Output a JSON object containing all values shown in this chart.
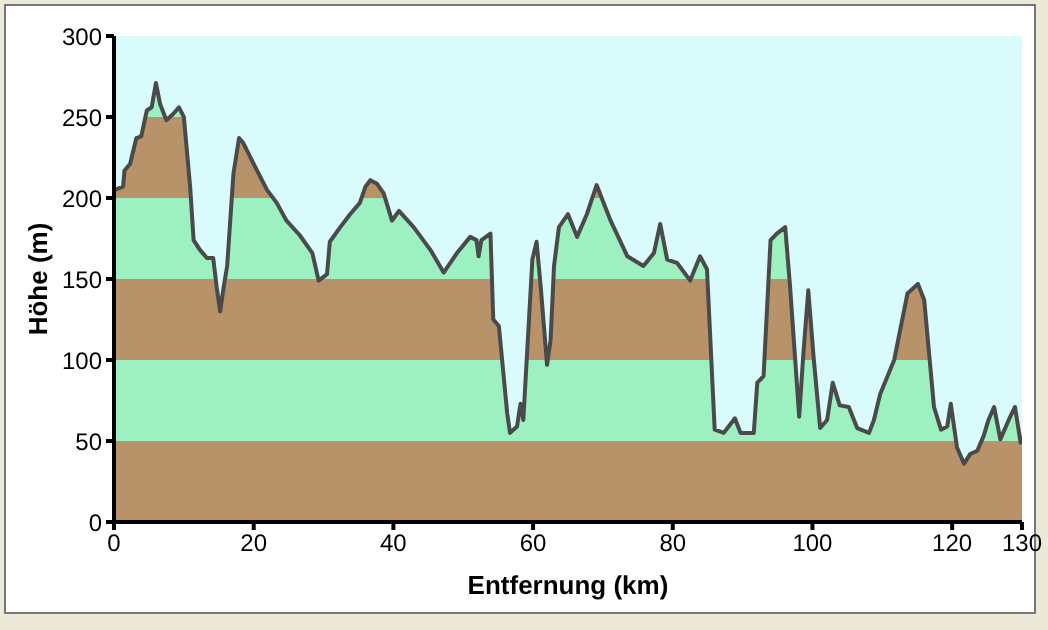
{
  "chart_data": {
    "type": "area",
    "xlabel": "Entfernung   (km)",
    "ylabel": "Höhe (m)",
    "color": "#4a4a4a",
    "x": [
      0.1,
      1.3,
      1.5,
      2.3,
      3.2,
      3.9,
      4.7,
      5.4,
      6.0,
      6.6,
      7.5,
      8.5,
      9.3,
      10.0,
      10.9,
      11.4,
      12.3,
      13.3,
      14.2,
      14.7,
      15.2,
      15.7,
      16.2,
      17.1,
      17.9,
      18.5,
      20.0,
      21.9,
      23.3,
      24.7,
      26.6,
      28.4,
      29.3,
      30.5,
      30.9,
      32.4,
      33.8,
      35.2,
      36.0,
      36.7,
      37.6,
      38.6,
      39.8,
      40.8,
      42.9,
      45.3,
      47.2,
      49.1,
      51.0,
      51.9,
      52.2,
      52.6,
      53.9,
      54.3,
      55.1,
      56.3,
      56.7,
      57.7,
      58.2,
      58.6,
      59.9,
      60.5,
      61.1,
      62.0,
      62.5,
      63.0,
      63.7,
      65.0,
      66.3,
      67.7,
      69.1,
      71.1,
      73.5,
      75.8,
      77.3,
      78.2,
      79.2,
      80.6,
      82.5,
      83.9,
      84.9,
      86.0,
      87.3,
      88.9,
      89.7,
      91.6,
      92.1,
      93.0,
      94.0,
      94.9,
      96.1,
      96.8,
      98.1,
      98.7,
      99.4,
      100.2,
      101.1,
      102.1,
      102.9,
      103.9,
      105.2,
      106.4,
      108.1,
      108.8,
      109.7,
      111.7,
      113.6,
      115.1,
      116.0,
      117.4,
      118.4,
      119.3,
      119.8,
      120.7,
      121.7,
      122.6,
      123.6,
      124.5,
      125.2,
      126.0,
      126.9,
      128.1,
      129.0,
      129.8,
      130
    ],
    "values": [
      205,
      207,
      217,
      221,
      237,
      238,
      254,
      256,
      271,
      258,
      248,
      252,
      256,
      250,
      207,
      174,
      168,
      163,
      163,
      145,
      130,
      145,
      158,
      215,
      237,
      234,
      221,
      205,
      197,
      186,
      177,
      166,
      149,
      153,
      173,
      182,
      190,
      197,
      207,
      211,
      209,
      203,
      186,
      192,
      182,
      168,
      154,
      166,
      176,
      174,
      164,
      174,
      178,
      125,
      121,
      67,
      55,
      59,
      73,
      63,
      162,
      173,
      145,
      97,
      112,
      158,
      182,
      190,
      176,
      190,
      208,
      186,
      164,
      158,
      166,
      184,
      162,
      160,
      149,
      164,
      156,
      57,
      55,
      64,
      55,
      55,
      86,
      90,
      174,
      178,
      182,
      145,
      65,
      104,
      143,
      100,
      58,
      63,
      86,
      72,
      71,
      58,
      55,
      63,
      79,
      100,
      141,
      147,
      137,
      71,
      57,
      59,
      73,
      46,
      36,
      42,
      44,
      53,
      63,
      71,
      51,
      63,
      71,
      49,
      53
    ],
    "bands": [
      {
        "axis": "y",
        "from": 0,
        "to": 50,
        "color": "#b89269"
      },
      {
        "axis": "y",
        "from": 50,
        "to": 100,
        "color": "#9df0c0"
      },
      {
        "axis": "y",
        "from": 100,
        "to": 150,
        "color": "#b89269"
      },
      {
        "axis": "y",
        "from": 150,
        "to": 200,
        "color": "#9df0c0"
      },
      {
        "axis": "y",
        "from": 200,
        "to": 250,
        "color": "#b89269"
      },
      {
        "axis": "y",
        "from": 250,
        "to": 300,
        "color": "#9df0c0"
      }
    ],
    "xlim": [
      0,
      130
    ],
    "xticks": [
      0,
      20,
      40,
      60,
      80,
      100,
      120,
      130
    ],
    "ylim": [
      0,
      300
    ],
    "yticks": [
      0,
      50,
      100,
      150,
      200,
      250,
      300
    ],
    "grid": false,
    "marker": "none",
    "line_style": "solid"
  }
}
